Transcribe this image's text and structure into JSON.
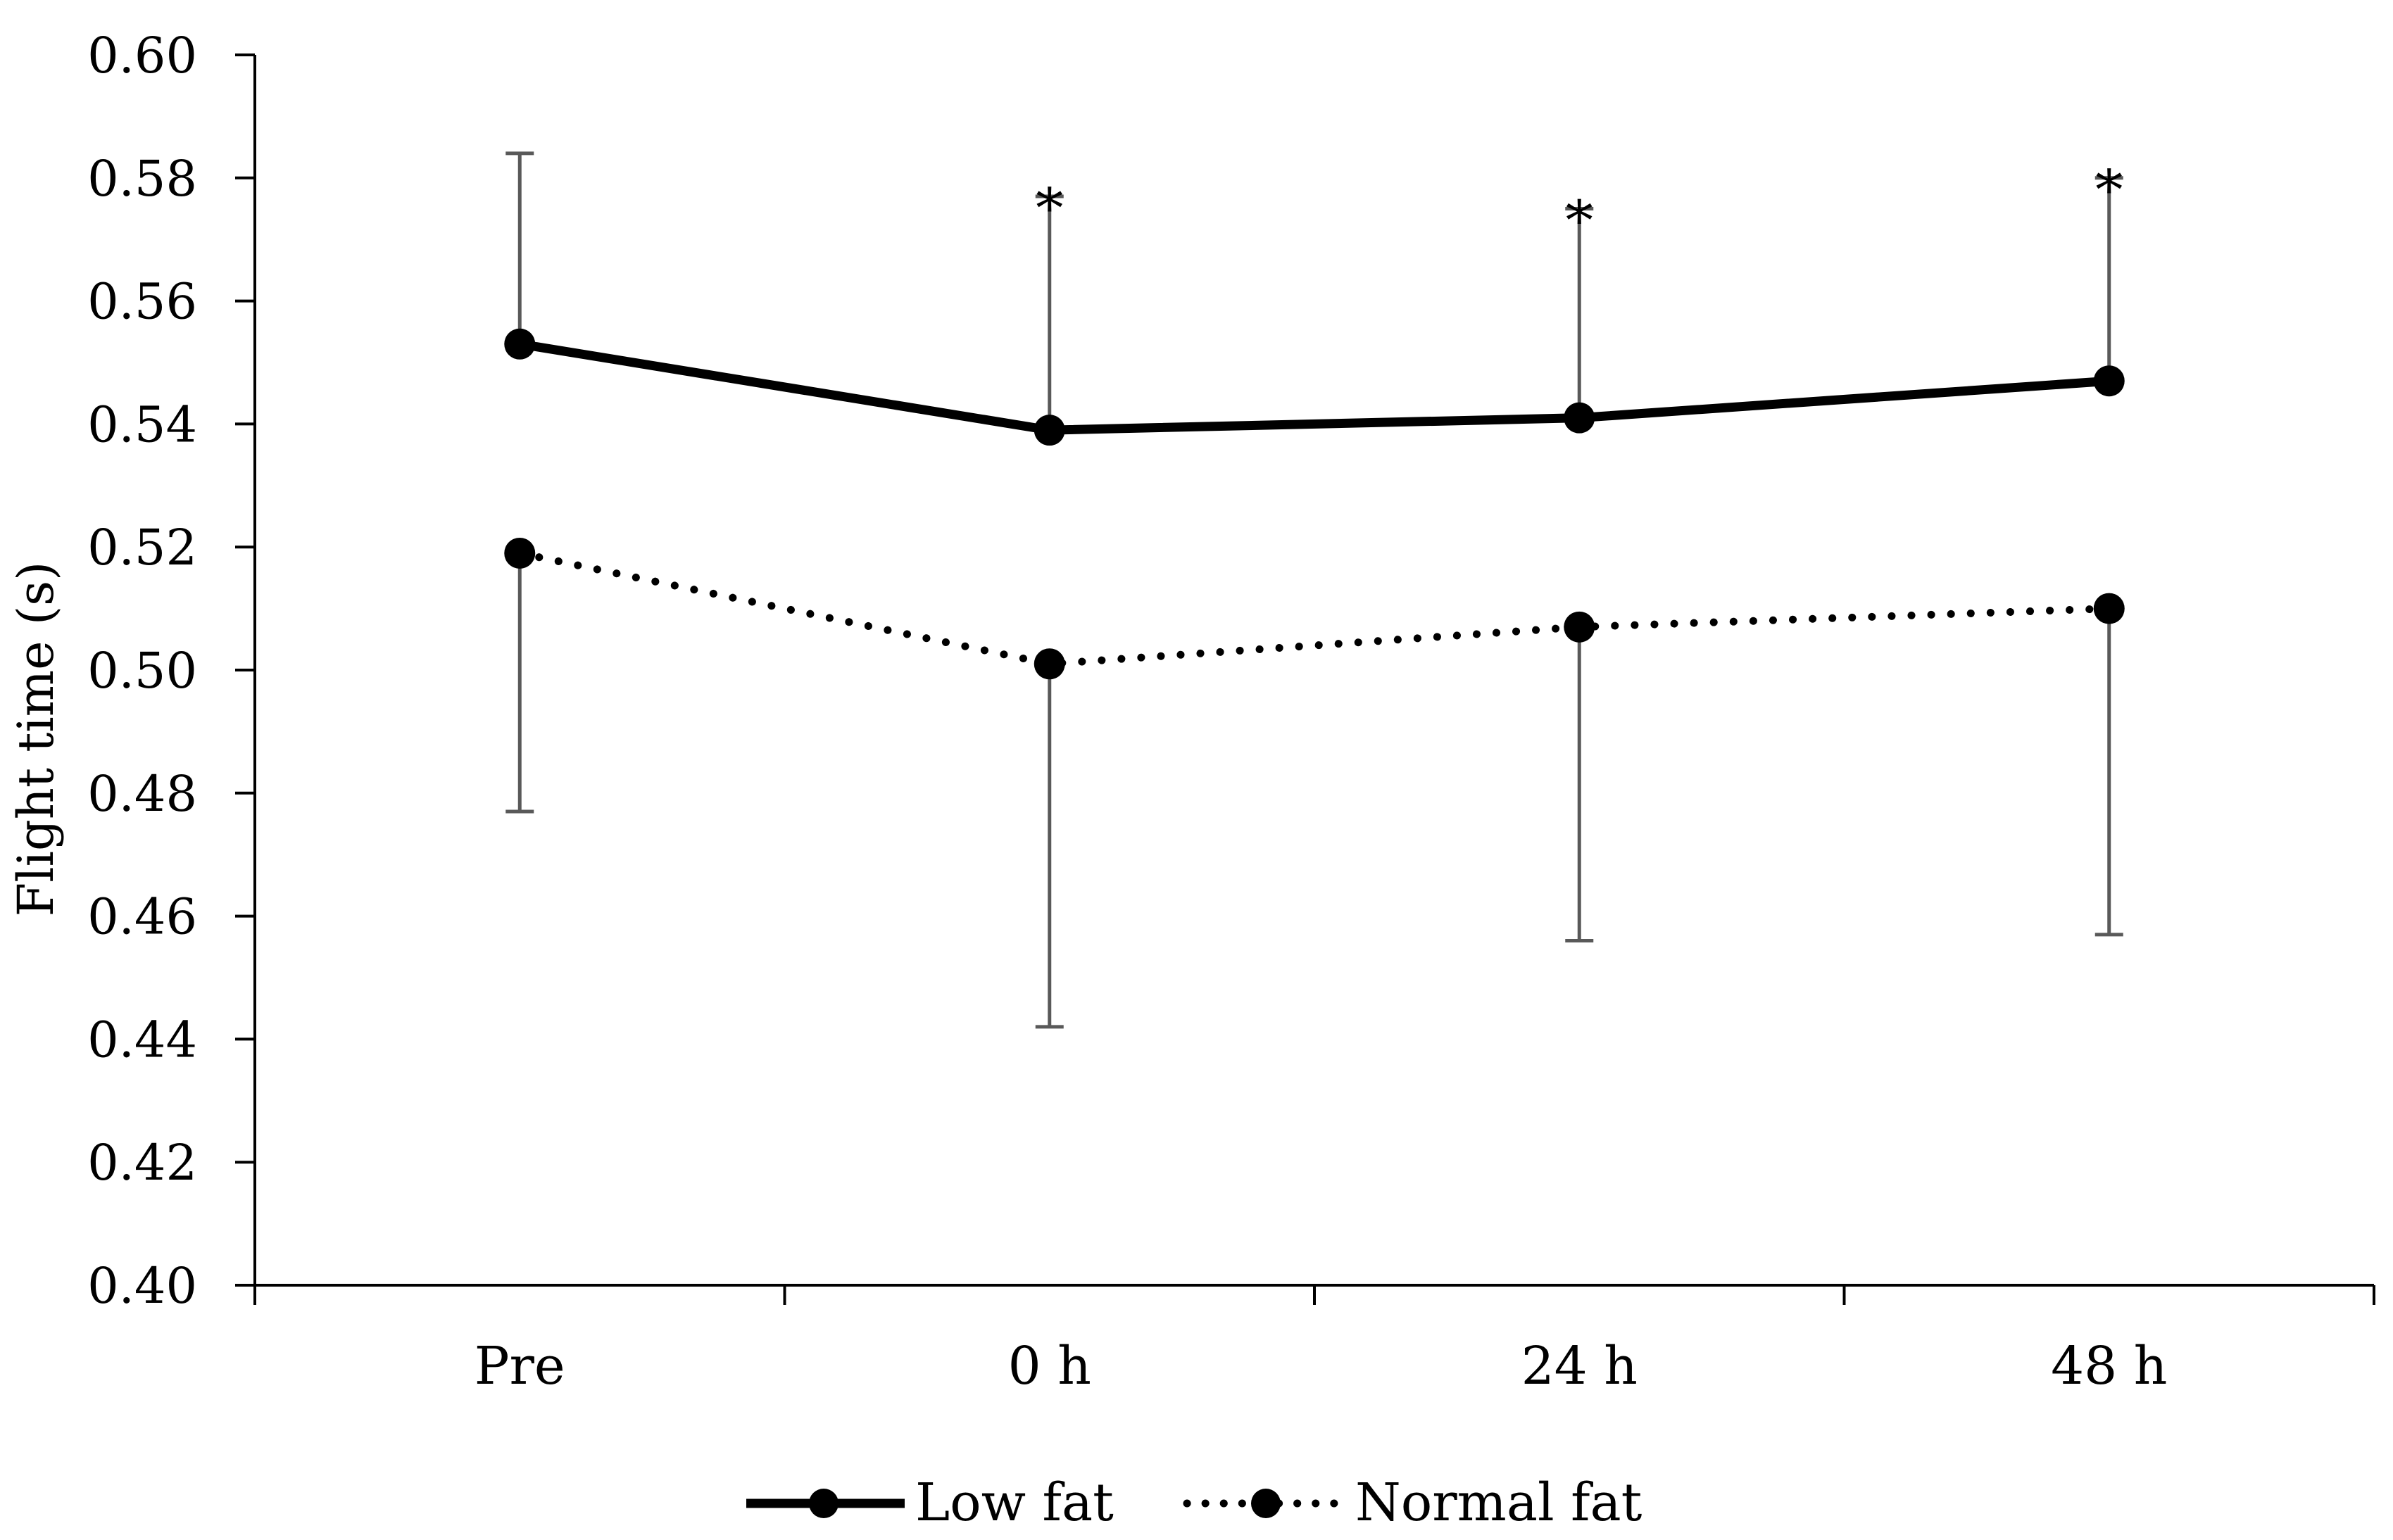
{
  "chart_data": {
    "type": "line",
    "title": "",
    "xlabel": "",
    "ylabel": "Flight time (s)",
    "categories": [
      "Pre",
      "0 h",
      "24 h",
      "48 h"
    ],
    "ylim": [
      0.4,
      0.6
    ],
    "yticks": [
      "0.40",
      "0.42",
      "0.44",
      "0.46",
      "0.48",
      "0.50",
      "0.52",
      "0.54",
      "0.56",
      "0.58",
      "0.60"
    ],
    "series": [
      {
        "name": "Low fat",
        "style": "solid",
        "values": [
          0.553,
          0.539,
          0.541,
          0.547
        ],
        "error_upper": [
          0.584,
          0.577,
          0.575,
          0.58
        ]
      },
      {
        "name": "Normal fat",
        "style": "dotted",
        "values": [
          0.519,
          0.501,
          0.507,
          0.51
        ],
        "error_lower": [
          0.477,
          0.442,
          0.456,
          0.457
        ]
      }
    ],
    "annotations": [
      {
        "category": "0 h",
        "text": "*"
      },
      {
        "category": "24 h",
        "text": "*"
      },
      {
        "category": "48 h",
        "text": "*"
      }
    ],
    "legend_position": "bottom-center",
    "colors": {
      "line": "#000000",
      "error_bar": "#595959",
      "axis": "#000000"
    }
  }
}
